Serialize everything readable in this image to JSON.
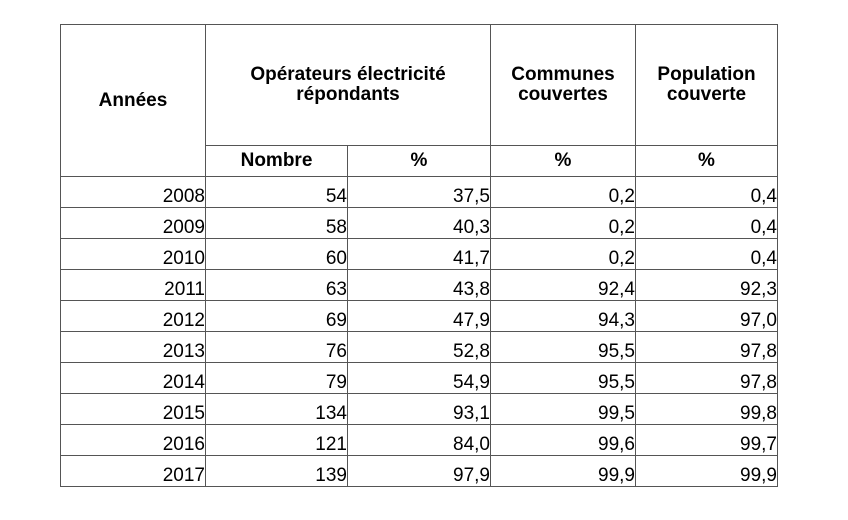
{
  "table": {
    "headers": {
      "years": "Années",
      "operators": "Opérateurs électricité répondants",
      "communes": "Communes couvertes",
      "population": "Population couverte"
    },
    "subheaders": {
      "nombre": "Nombre",
      "operators_pct": "%",
      "communes_pct": "%",
      "population_pct": "%"
    },
    "rows": [
      {
        "year": "2008",
        "nombre": "54",
        "operators_pct": "37,5",
        "communes_pct": "0,2",
        "population_pct": "0,4"
      },
      {
        "year": "2009",
        "nombre": "58",
        "operators_pct": "40,3",
        "communes_pct": "0,2",
        "population_pct": "0,4"
      },
      {
        "year": "2010",
        "nombre": "60",
        "operators_pct": "41,7",
        "communes_pct": "0,2",
        "population_pct": "0,4"
      },
      {
        "year": "2011",
        "nombre": "63",
        "operators_pct": "43,8",
        "communes_pct": "92,4",
        "population_pct": "92,3"
      },
      {
        "year": "2012",
        "nombre": "69",
        "operators_pct": "47,9",
        "communes_pct": "94,3",
        "population_pct": "97,0"
      },
      {
        "year": "2013",
        "nombre": "76",
        "operators_pct": "52,8",
        "communes_pct": "95,5",
        "population_pct": "97,8"
      },
      {
        "year": "2014",
        "nombre": "79",
        "operators_pct": "54,9",
        "communes_pct": "95,5",
        "population_pct": "97,8"
      },
      {
        "year": "2015",
        "nombre": "134",
        "operators_pct": "93,1",
        "communes_pct": "99,5",
        "population_pct": "99,8"
      },
      {
        "year": "2016",
        "nombre": "121",
        "operators_pct": "84,0",
        "communes_pct": "99,6",
        "population_pct": "99,7"
      },
      {
        "year": "2017",
        "nombre": "139",
        "operators_pct": "97,9",
        "communes_pct": "99,9",
        "population_pct": "99,9"
      }
    ]
  }
}
